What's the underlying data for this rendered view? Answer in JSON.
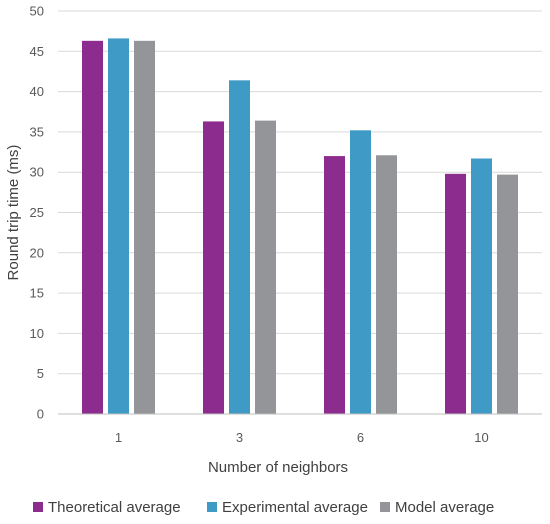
{
  "chart_data": {
    "type": "bar",
    "categories": [
      "1",
      "3",
      "6",
      "10"
    ],
    "series": [
      {
        "name": "Theoretical average",
        "color": "#8B2C8E",
        "values": [
          46.3,
          36.3,
          32.0,
          29.8
        ]
      },
      {
        "name": "Experimental average",
        "color": "#3F9BC6",
        "values": [
          46.6,
          41.4,
          35.2,
          31.7
        ]
      },
      {
        "name": "Model average",
        "color": "#939598",
        "values": [
          46.3,
          36.4,
          32.1,
          29.7
        ]
      }
    ],
    "xlabel": "Number of neighbors",
    "ylabel": "Round trip time (ms)",
    "ylim": [
      0,
      50
    ],
    "yticks": [
      0,
      5,
      10,
      15,
      20,
      25,
      30,
      35,
      40,
      45,
      50
    ],
    "grid": true,
    "legend_position": "bottom"
  }
}
